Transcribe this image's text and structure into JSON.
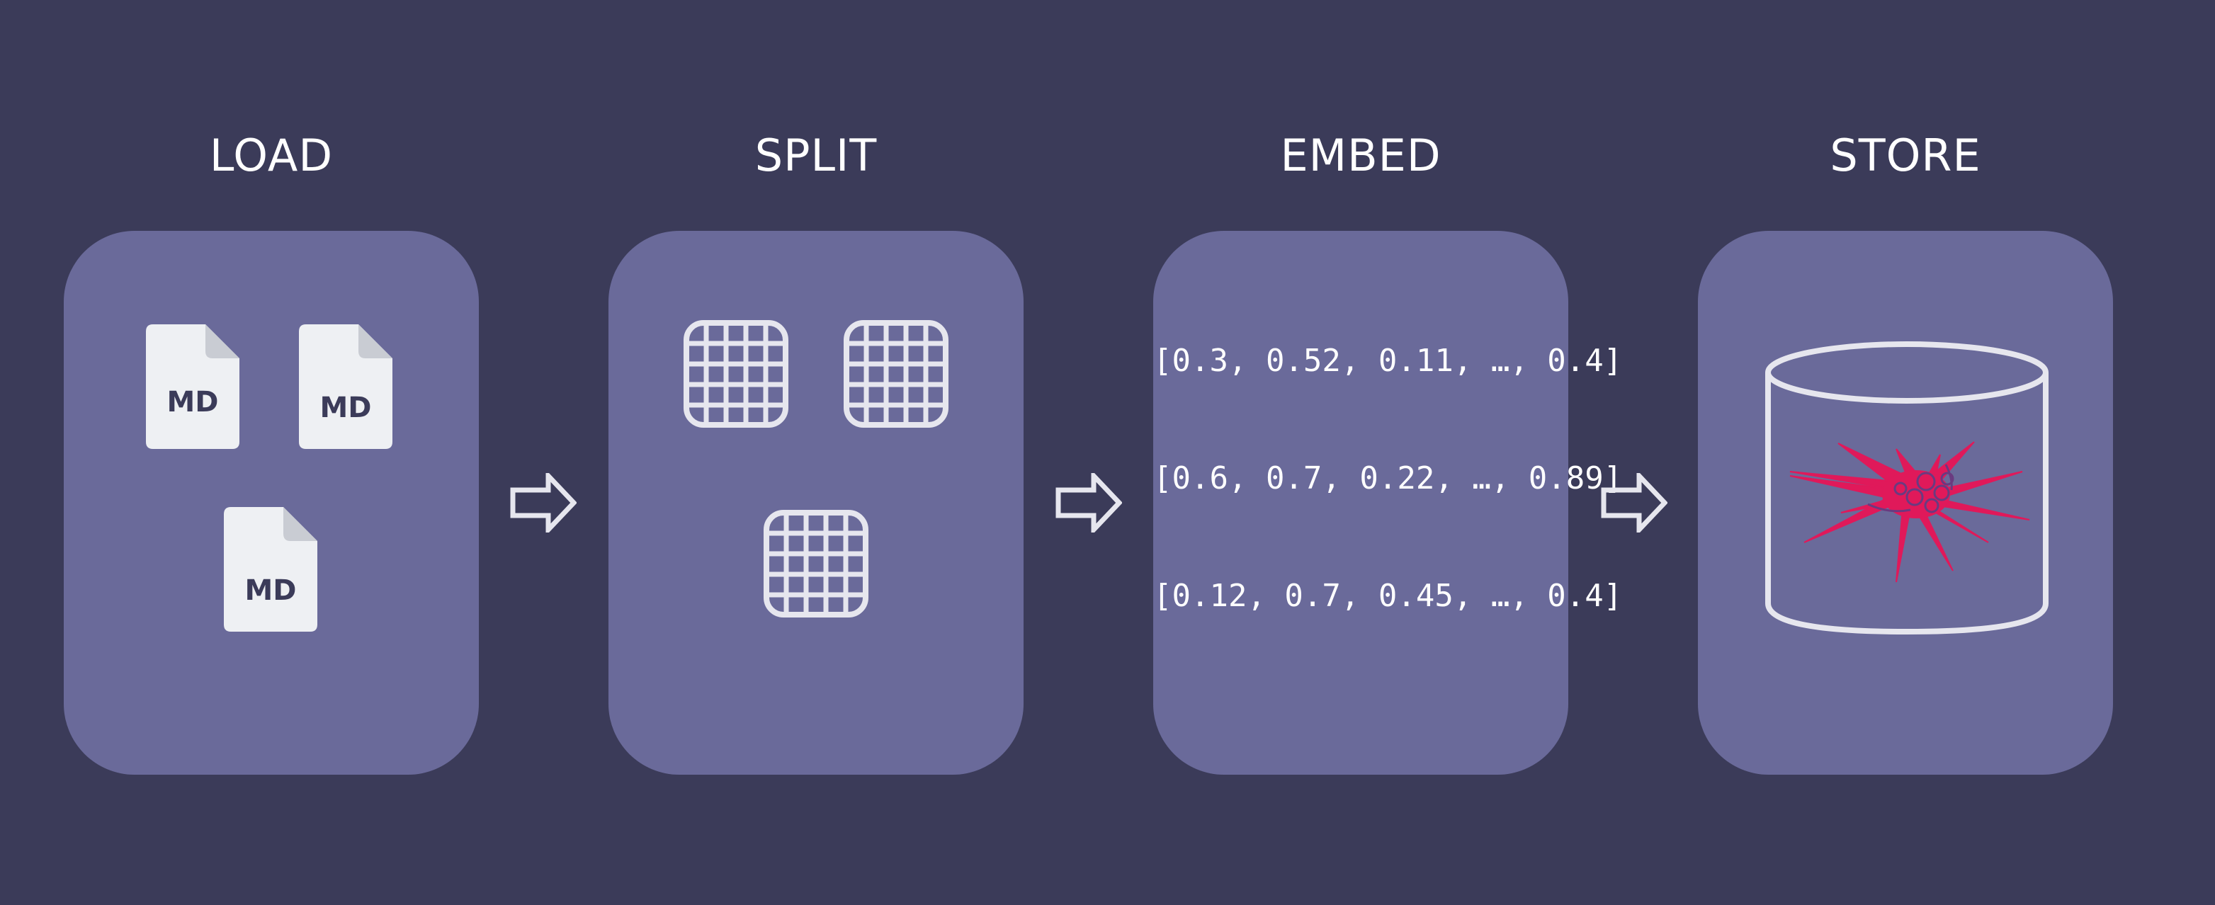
{
  "stages": [
    {
      "title": "LOAD",
      "documents": [
        {
          "label": "MD",
          "icon": "markdown-file-icon"
        },
        {
          "label": "MD",
          "icon": "markdown-file-icon"
        },
        {
          "label": "MD",
          "icon": "markdown-file-icon"
        }
      ]
    },
    {
      "title": "SPLIT",
      "chunks": [
        {
          "icon": "grid-chunk-icon"
        },
        {
          "icon": "grid-chunk-icon"
        },
        {
          "icon": "grid-chunk-icon"
        }
      ]
    },
    {
      "title": "EMBED",
      "vectors": [
        "[0.3, 0.52, 0.11, …, 0.4]",
        "[0.6, 0.7, 0.22, …, 0.89]",
        "[0.12, 0.7, 0.45, …, 0.4]"
      ]
    },
    {
      "title": "STORE",
      "icon": "vector-database-icon"
    }
  ],
  "connectors": [
    {
      "icon": "arrow-right-icon"
    },
    {
      "icon": "arrow-right-icon"
    },
    {
      "icon": "arrow-right-icon"
    }
  ],
  "colors": {
    "background": "#3b3b59",
    "panel": "#6a6a9a",
    "text": "#ffffff",
    "icon_stroke": "#e6e6ee",
    "document_fill": "#eef0f3",
    "document_fold": "#c9ccd3",
    "network_accent": "#e0195a"
  }
}
